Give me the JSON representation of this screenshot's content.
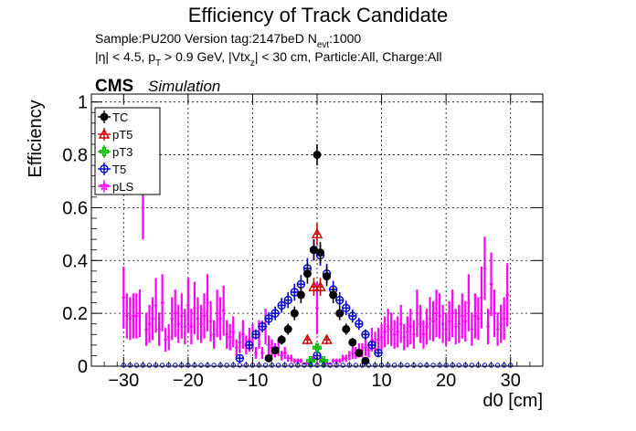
{
  "chart_data": {
    "type": "scatter",
    "title": "Efficiency of Track Candidate",
    "subtitle_line1": "Sample:PU200   Version tag:2147beD  N",
    "subtitle_line1_sub": "evt",
    "subtitle_line1_end": ":1000",
    "subtitle_line2": {
      "a": "|η| < 4.5, p",
      "a_sub": "T",
      "b": " > 0.9 GeV, |Vtx",
      "b_sub": "z",
      "c": "| < 30 cm, Particle:All, Charge:All"
    },
    "cms_label": "CMS",
    "simulation_label": "Simulation",
    "xlabel": "d0 [cm]",
    "ylabel": "Efficiency",
    "xlim": [
      -35,
      35
    ],
    "ylim": [
      0,
      1.03
    ],
    "xticks": [
      -30,
      -20,
      -10,
      0,
      10,
      20,
      30
    ],
    "yticks": [
      0,
      0.2,
      0.4,
      0.6,
      0.8,
      1
    ],
    "ytick_labels": [
      "0",
      "0.2",
      "0.4",
      "0.6",
      "0.8",
      "1"
    ],
    "grid": true,
    "legend_position": "top-left",
    "series": [
      {
        "name": "TC",
        "color": "#000000",
        "marker": "filled-circle",
        "x": [
          -7.5,
          -6.5,
          -5.5,
          -4.5,
          -3.5,
          -2.5,
          -1.5,
          -0.5,
          0,
          0.5,
          1.5,
          2.5,
          3.5,
          4.5,
          5.5,
          6.5,
          7.5
        ],
        "y": [
          0.03,
          0.06,
          0.1,
          0.14,
          0.2,
          0.27,
          0.35,
          0.44,
          0.8,
          0.43,
          0.34,
          0.27,
          0.2,
          0.14,
          0.09,
          0.05,
          0.02
        ]
      },
      {
        "name": "pT5",
        "color": "#cc0000",
        "marker": "open-triangle",
        "x": [
          -1.5,
          -0.5,
          0,
          0.5,
          1.5
        ],
        "y": [
          0.1,
          0.3,
          0.5,
          0.3,
          0.1
        ]
      },
      {
        "name": "pT3",
        "color": "#00bb00",
        "marker": "open-cross",
        "x": [
          -1,
          0,
          1
        ],
        "y": [
          0.02,
          0.07,
          0.02
        ]
      },
      {
        "name": "T5",
        "color": "#0000cc",
        "marker": "open-circle",
        "x": [
          -12,
          -10.5,
          -9.5,
          -8.5,
          -7.5,
          -6.5,
          -5.5,
          -4.5,
          -3.5,
          -2.5,
          -1.5,
          -0.5,
          0,
          0.5,
          1.5,
          2.5,
          3.5,
          4.5,
          5.5,
          6.5,
          7.5,
          8.5,
          9.5
        ],
        "y": [
          0.03,
          0.08,
          0.12,
          0.15,
          0.18,
          0.2,
          0.23,
          0.25,
          0.28,
          0.31,
          0.37,
          0.44,
          0.04,
          0.42,
          0.35,
          0.29,
          0.25,
          0.22,
          0.19,
          0.16,
          0.12,
          0.08,
          0.05
        ]
      },
      {
        "name": "pLS",
        "color": "#ff00ff",
        "marker": "open-star",
        "x": [
          -30,
          -29.5,
          -29,
          -28.5,
          -28,
          -27.5,
          -27,
          -26.5,
          -26,
          -25.5,
          -25,
          -24.5,
          -24,
          -23.5,
          -23,
          -22.5,
          -22,
          -21.5,
          -21,
          -20.5,
          -20,
          -19.5,
          -19,
          -18.5,
          -18,
          -17.5,
          -17,
          -16.5,
          -16,
          -15.5,
          -15,
          -14.5,
          -14,
          -13.5,
          -13,
          -12.5,
          -12,
          -11.5,
          -11,
          -10.5,
          -10,
          -9.5,
          -9,
          -8.5,
          -8,
          -7.5,
          -7,
          -6.5,
          -6,
          -5.5,
          -5,
          -4.5,
          -4,
          -3.5,
          -3,
          -2.5,
          -2,
          -1.5,
          -1,
          -0.5,
          0,
          0.5,
          1,
          1.5,
          2,
          2.5,
          3,
          3.5,
          4,
          4.5,
          5,
          5.5,
          6,
          6.5,
          7,
          7.5,
          8,
          8.5,
          9,
          9.5,
          10,
          10.5,
          11,
          11.5,
          12,
          12.5,
          13,
          13.5,
          14,
          14.5,
          15,
          15.5,
          16,
          16.5,
          17,
          17.5,
          18,
          18.5,
          19,
          19.5,
          20,
          20.5,
          21,
          21.5,
          22,
          22.5,
          23,
          23.5,
          24,
          24.5,
          25,
          25.5,
          26,
          26.5,
          27,
          27.5,
          28,
          28.5,
          29,
          29.5
        ],
        "y": [
          0.26,
          0.19,
          0.18,
          0.19,
          0.19,
          0.2,
          0.6,
          0.14,
          0.16,
          0.18,
          0.23,
          0.14,
          0.24,
          0.1,
          0.11,
          0.18,
          0.2,
          0.16,
          0.19,
          0.15,
          0.23,
          0.15,
          0.22,
          0.18,
          0.16,
          0.19,
          0.24,
          0.17,
          0.12,
          0.2,
          0.18,
          0.21,
          0.12,
          0.11,
          0.13,
          0.07,
          0.09,
          0.12,
          0.08,
          0.1,
          0.11,
          0.05,
          0.12,
          0.05,
          0.15,
          0.08,
          0.07,
          0.06,
          0.07,
          0.04,
          0.05,
          0.03,
          0.03,
          0.02,
          0.02,
          0.02,
          0.01,
          0.01,
          0.02,
          0.03,
          0.22,
          0.03,
          0.02,
          0.01,
          0.01,
          0.02,
          0.02,
          0.02,
          0.03,
          0.03,
          0.04,
          0.05,
          0.05,
          0.06,
          0.06,
          0.07,
          0.06,
          0.1,
          0.09,
          0.1,
          0.11,
          0.13,
          0.15,
          0.14,
          0.12,
          0.13,
          0.16,
          0.11,
          0.13,
          0.15,
          0.12,
          0.2,
          0.16,
          0.12,
          0.15,
          0.18,
          0.17,
          0.2,
          0.19,
          0.16,
          0.14,
          0.17,
          0.2,
          0.15,
          0.16,
          0.19,
          0.17,
          0.24,
          0.14,
          0.19,
          0.18,
          0.26,
          0.37,
          0.15,
          0.31,
          0.2,
          0.14,
          0.16,
          0.18,
          0.27
        ]
      }
    ]
  }
}
